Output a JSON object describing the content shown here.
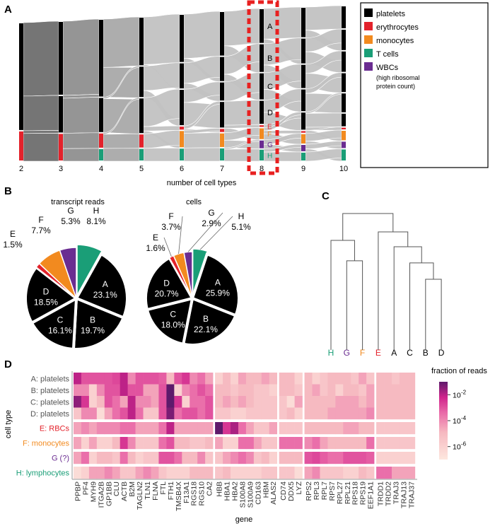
{
  "panels": {
    "a": "A",
    "b": "B",
    "c": "C",
    "d": "D"
  },
  "colors": {
    "platelets": "#000000",
    "erythrocytes": "#e3222b",
    "monocytes": "#f28a1f",
    "tcells": "#1a9e77",
    "wbcs": "#6a2c91",
    "highlight_box": "#e82020"
  },
  "chart_data": [
    {
      "type": "alluvial",
      "xlabel": "number of cell types",
      "x": [
        "2",
        "3",
        "4",
        "5",
        "6",
        "7",
        "8",
        "9",
        "10"
      ],
      "highlighted_x": "8",
      "columns": [
        [
          [
            "platelets",
            0.78
          ],
          [
            "erythrocytes",
            0.22
          ]
        ],
        [
          [
            "platelets",
            0.53
          ],
          [
            "platelets",
            0.27
          ],
          [
            "erythrocytes",
            0.2
          ]
        ],
        [
          [
            "platelets",
            0.55
          ],
          [
            "platelets",
            0.25
          ],
          [
            "erythrocytes",
            0.11
          ],
          [
            "tcells",
            0.09
          ]
        ],
        [
          [
            "platelets",
            0.34
          ],
          [
            "platelets",
            0.22
          ],
          [
            "platelets",
            0.25
          ],
          [
            "erythrocytes",
            0.1
          ],
          [
            "tcells",
            0.09
          ]
        ],
        [
          [
            "platelets",
            0.33
          ],
          [
            "platelets",
            0.18
          ],
          [
            "platelets",
            0.25
          ],
          [
            "erythrocytes",
            0.03
          ],
          [
            "monocytes",
            0.12
          ],
          [
            "tcells",
            0.09
          ]
        ],
        [
          [
            "platelets",
            0.3
          ],
          [
            "platelets",
            0.17
          ],
          [
            "platelets",
            0.13
          ],
          [
            "platelets",
            0.18
          ],
          [
            "erythrocytes",
            0.03
          ],
          [
            "monocytes",
            0.1
          ],
          [
            "tcells",
            0.09
          ]
        ],
        [
          [
            "platelets",
            0.23
          ],
          [
            "platelets",
            0.19
          ],
          [
            "platelets",
            0.18
          ],
          [
            "platelets",
            0.16
          ],
          [
            "erythrocytes",
            0.02
          ],
          [
            "monocytes",
            0.08
          ],
          [
            "wbcs",
            0.06
          ],
          [
            "tcells",
            0.08
          ]
        ],
        [
          [
            "platelets",
            0.2
          ],
          [
            "platelets",
            0.17
          ],
          [
            "platelets",
            0.16
          ],
          [
            "platelets",
            0.15
          ],
          [
            "platelets",
            0.12
          ],
          [
            "erythrocytes",
            0.02
          ],
          [
            "monocytes",
            0.07
          ],
          [
            "wbcs",
            0.05
          ],
          [
            "tcells",
            0.06
          ]
        ],
        [
          [
            "platelets",
            0.15
          ],
          [
            "platelets",
            0.14
          ],
          [
            "platelets",
            0.14
          ],
          [
            "platelets",
            0.13
          ],
          [
            "platelets",
            0.13
          ],
          [
            "platelets",
            0.09
          ],
          [
            "erythrocytes",
            0.02
          ],
          [
            "monocytes",
            0.07
          ],
          [
            "wbcs",
            0.05
          ],
          [
            "tcells",
            0.08
          ]
        ]
      ],
      "cluster_labels_at_8": [
        {
          "label": "A",
          "type": "platelets"
        },
        {
          "label": "B",
          "type": "platelets"
        },
        {
          "label": "C",
          "type": "platelets"
        },
        {
          "label": "D",
          "type": "platelets"
        },
        {
          "label": "E",
          "type": "erythrocytes"
        },
        {
          "label": "F",
          "type": "monocytes"
        },
        {
          "label": "G",
          "type": "wbcs"
        },
        {
          "label": "H",
          "type": "tcells"
        }
      ],
      "legend": [
        {
          "key": "platelets",
          "label": "platelets"
        },
        {
          "key": "erythrocytes",
          "label": "erythrocytes"
        },
        {
          "key": "monocytes",
          "label": "monocytes"
        },
        {
          "key": "tcells",
          "label": "T cells"
        },
        {
          "key": "wbcs",
          "label": "WBCs",
          "note1": "(high ribosomal",
          "note2": "protein count)"
        }
      ]
    },
    {
      "type": "pie",
      "title": "transcript reads",
      "slices": [
        {
          "label": "H",
          "value": 8.1,
          "text": "8.1%",
          "type": "tcells"
        },
        {
          "label": "A",
          "value": 23.1,
          "text": "23.1%",
          "type": "platelets"
        },
        {
          "label": "B",
          "value": 19.7,
          "text": "19.7%",
          "type": "platelets"
        },
        {
          "label": "C",
          "value": 16.1,
          "text": "16.1%",
          "type": "platelets"
        },
        {
          "label": "D",
          "value": 18.5,
          "text": "18.5%",
          "type": "platelets"
        },
        {
          "label": "E",
          "value": 1.5,
          "text": "1.5%",
          "type": "erythrocytes"
        },
        {
          "label": "F",
          "value": 7.7,
          "text": "7.7%",
          "type": "monocytes"
        },
        {
          "label": "G",
          "value": 5.3,
          "text": "5.3%",
          "type": "wbcs"
        }
      ]
    },
    {
      "type": "pie",
      "title": "cells",
      "slices": [
        {
          "label": "H",
          "value": 5.1,
          "text": "5.1%",
          "type": "tcells"
        },
        {
          "label": "A",
          "value": 25.9,
          "text": "25.9%",
          "type": "platelets"
        },
        {
          "label": "B",
          "value": 22.1,
          "text": "22.1%",
          "type": "platelets"
        },
        {
          "label": "C",
          "value": 18.0,
          "text": "18.0%",
          "type": "platelets"
        },
        {
          "label": "D",
          "value": 20.7,
          "text": "20.7%",
          "type": "platelets"
        },
        {
          "label": "E",
          "value": 1.6,
          "text": "1.6%",
          "type": "erythrocytes"
        },
        {
          "label": "F",
          "value": 3.7,
          "text": "3.7%",
          "type": "monocytes"
        },
        {
          "label": "G",
          "value": 2.9,
          "text": "2.9%",
          "type": "wbcs"
        }
      ]
    },
    {
      "type": "dendrogram",
      "leaves": [
        {
          "label": "H",
          "type": "tcells"
        },
        {
          "label": "G",
          "type": "wbcs"
        },
        {
          "label": "F",
          "type": "monocytes"
        },
        {
          "label": "E",
          "type": "erythrocytes"
        },
        {
          "label": "A",
          "type": "platelets"
        },
        {
          "label": "C",
          "type": "platelets"
        },
        {
          "label": "B",
          "type": "platelets"
        },
        {
          "label": "D",
          "type": "platelets"
        }
      ],
      "merges": [
        {
          "a": "B",
          "b": "D",
          "id": "BD",
          "height": 0.505
        },
        {
          "a": "C",
          "b": "BD",
          "id": "CBD",
          "height": 0.628
        },
        {
          "a": "G",
          "b": "F",
          "id": "GF",
          "height": 0.644
        },
        {
          "a": "A",
          "b": "CBD",
          "id": "ACBD",
          "height": 0.75
        },
        {
          "a": "H",
          "b": "GF",
          "id": "HGF",
          "height": 0.798
        },
        {
          "a": "E",
          "b": "ACBD",
          "id": "EACBD",
          "height": 0.862
        },
        {
          "a": "HGF",
          "b": "EACBD",
          "id": "root",
          "height": 1.0
        }
      ]
    },
    {
      "type": "heatmap",
      "xlabel": "gene",
      "ylabel": "cell type",
      "colorbar_title": "fraction of reads",
      "colorbar_ticks": [
        {
          "exp": -2,
          "base": "10",
          "sup": "-2"
        },
        {
          "exp": -4,
          "base": "10",
          "sup": "-4"
        },
        {
          "exp": -6,
          "base": "10",
          "sup": "-6"
        }
      ],
      "value_scale": "log10",
      "range": [
        -7,
        -1
      ],
      "rows": [
        {
          "label": "A: platelets",
          "type": "platelets"
        },
        {
          "label": "B: platelets",
          "type": "platelets"
        },
        {
          "label": "C: platelets",
          "type": "platelets"
        },
        {
          "label": "D: platelets",
          "type": "platelets"
        },
        {
          "label": "E: RBCs",
          "type": "erythrocytes"
        },
        {
          "label": "F: monocytes",
          "type": "monocytes"
        },
        {
          "label": "G (?)",
          "type": "wbcs"
        },
        {
          "label": "H: lymphocytes",
          "type": "tcells"
        }
      ],
      "gene_groups": [
        [
          "PPBP",
          "PF4",
          "MYH9",
          "ITGA2B",
          "GP1BB",
          "CLU",
          "ACTB",
          "B2M",
          "TAGLN2",
          "TLN1",
          "FLNA",
          "FTL",
          "FTH1",
          "TMSB4X",
          "F13A1",
          "RGS18",
          "RGS10",
          "CA2"
        ],
        [
          "HBB",
          "HBA1",
          "HBA2",
          "S100A8",
          "S100A9",
          "CD163",
          "HBM",
          "ALAS2"
        ],
        [
          "CD74",
          "DDX5",
          "LYZ"
        ],
        [
          "RPS2",
          "RPL3",
          "RPL7",
          "RPS7",
          "RPL27",
          "RPL21",
          "RPS18",
          "RPS19",
          "EEF1A1"
        ],
        [
          "TRDD1",
          "TRDD2",
          "TRAJ3",
          "TRAJ13",
          "TRAJ37"
        ]
      ],
      "log10_values": [
        [
          -2,
          -3,
          -3,
          -3,
          -3,
          -2.8,
          -2,
          -4,
          -3,
          -3,
          -3,
          -3.2,
          -5,
          -3,
          -2.5,
          -4,
          -3.5,
          -4.5,
          -6,
          -5,
          -6,
          -4.5,
          -5,
          -5,
          -4.5,
          -5,
          -5,
          -5,
          -6,
          -5,
          -6,
          -5.5,
          -5,
          -5,
          -5,
          -5.5,
          -4.5,
          -5.5,
          -5,
          -5,
          -5.5,
          -5,
          -5
        ],
        [
          -4,
          -4,
          -6,
          -4,
          -3,
          -3,
          -2,
          -3,
          -3,
          -4.5,
          -4.5,
          -3,
          -1,
          -6,
          -4,
          -3.5,
          -3,
          -3.5,
          -5,
          -5,
          -5.5,
          -5,
          -5,
          -5.5,
          -5.5,
          -6,
          -5,
          -5,
          -5.5,
          -5,
          -4.5,
          -5.5,
          -5,
          -6,
          -5,
          -5,
          -5.5,
          -4.5,
          -5,
          -5,
          -5,
          -5,
          -5
        ],
        [
          -1.5,
          -2.5,
          -6,
          -5,
          -3,
          -3.5,
          -4.5,
          -2,
          -4,
          -4,
          -4.5,
          -3,
          -1,
          -2.5,
          -6,
          -3.5,
          -3.5,
          -3,
          -5,
          -4.5,
          -5,
          -4.5,
          -5,
          -5.5,
          -5.5,
          -5.5,
          -5.5,
          -6.5,
          -4.5,
          -5,
          -5,
          -5,
          -5,
          -4.5,
          -4.5,
          -4.5,
          -5,
          -4.5,
          -5,
          -5,
          -5,
          -5,
          -5
        ],
        [
          -5.5,
          -4,
          -4,
          -6.5,
          -4.5,
          -3.5,
          -3,
          -2,
          -3.5,
          -5.5,
          -5.5,
          -3,
          -1.3,
          -3.5,
          -3,
          -3,
          -3.5,
          -3,
          -5.5,
          -5.5,
          -6,
          -6,
          -5.5,
          -5.5,
          -5.5,
          -5.5,
          -5.5,
          -5,
          -6,
          -5,
          -5,
          -5,
          -4.5,
          -4.5,
          -4.5,
          -4.5,
          -4.5,
          -4,
          -5,
          -5,
          -5,
          -5,
          -5
        ],
        [
          -4.5,
          -4,
          -4.5,
          -4,
          -4,
          -4,
          -3.5,
          -3.5,
          -4.5,
          -4.5,
          -4.5,
          -3.5,
          -2,
          -4.5,
          -4.5,
          -4.5,
          -4.5,
          -4.5,
          -1,
          -2.5,
          -1.8,
          -3.5,
          -4.5,
          -5.5,
          -5.5,
          -4.5,
          -5.5,
          -5.5,
          -5.5,
          -5,
          -5,
          -5,
          -5,
          -5,
          -4.5,
          -4.5,
          -5,
          -5,
          -5.5,
          -5.5,
          -5.5,
          -5.5,
          -5.5
        ],
        [
          -4.5,
          -6,
          -4.5,
          -6,
          -6,
          -5,
          -2.5,
          -4,
          -5.5,
          -5.5,
          -5.5,
          -3.5,
          -3,
          -5,
          -5,
          -5.5,
          -5.5,
          -5,
          -4.5,
          -6,
          -6,
          -3.5,
          -3.5,
          -4.5,
          -5.5,
          -5.5,
          -3.5,
          -3.5,
          -3.5,
          -4,
          -3.5,
          -4.5,
          -5,
          -5,
          -5,
          -5,
          -5,
          -3.5,
          -5.5,
          -5.5,
          -5.5,
          -5.5,
          -5.5
        ],
        [
          -4.5,
          -3.5,
          -6,
          -5,
          -5,
          -5.5,
          -3.5,
          -5,
          -6,
          -5.5,
          -5.5,
          -3,
          -3,
          -3.5,
          -5,
          -5,
          -4,
          -5.5,
          -5.5,
          -4.5,
          -4,
          -3.5,
          -4,
          -5.5,
          -5,
          -6,
          -5,
          -5,
          -5,
          -3,
          -2.8,
          -3.2,
          -3.5,
          -3.5,
          -3,
          -3,
          -3,
          -3.2,
          -6,
          -6,
          -6,
          -6,
          -6
        ],
        [
          -6.5,
          -6,
          -4.5,
          -4.5,
          -4,
          -4.5,
          -5.5,
          -5.5,
          -4.5,
          -4,
          -4.5,
          -5.5,
          -6,
          -6,
          -6,
          -5,
          -5,
          -5,
          -5.5,
          -5,
          -6,
          -6,
          -6,
          -6,
          -5.5,
          -5.5,
          -5.5,
          -5.5,
          -6.5,
          -4.5,
          -4,
          -5.5,
          -5.5,
          -5.5,
          -6,
          -6,
          -5,
          -5.5,
          -3.5,
          -3.5,
          -4.5,
          -4.5,
          -4.5
        ]
      ]
    }
  ]
}
